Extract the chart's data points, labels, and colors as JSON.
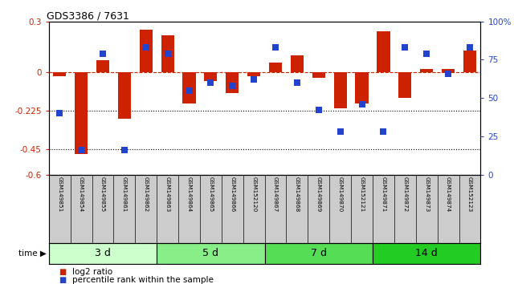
{
  "title": "GDS3386 / 7631",
  "samples": [
    "GSM149851",
    "GSM149854",
    "GSM149855",
    "GSM149861",
    "GSM149862",
    "GSM149863",
    "GSM149864",
    "GSM149865",
    "GSM149866",
    "GSM152120",
    "GSM149867",
    "GSM149868",
    "GSM149869",
    "GSM149870",
    "GSM152121",
    "GSM149871",
    "GSM149872",
    "GSM149873",
    "GSM149874",
    "GSM152123"
  ],
  "log2_ratio": [
    -0.02,
    -0.48,
    0.07,
    -0.27,
    0.25,
    0.22,
    -0.18,
    -0.05,
    -0.12,
    -0.02,
    0.06,
    0.1,
    -0.03,
    -0.21,
    -0.18,
    0.24,
    -0.15,
    0.02,
    0.02,
    0.13
  ],
  "percentile_rank": [
    40,
    16,
    79,
    16,
    83,
    79,
    55,
    60,
    58,
    62,
    83,
    60,
    42,
    28,
    46,
    28,
    83,
    79,
    66,
    83
  ],
  "groups": [
    {
      "label": "3 d",
      "start": 0,
      "end": 5,
      "color": "#ccffcc"
    },
    {
      "label": "5 d",
      "start": 5,
      "end": 10,
      "color": "#88ee88"
    },
    {
      "label": "7 d",
      "start": 10,
      "end": 15,
      "color": "#55dd55"
    },
    {
      "label": "14 d",
      "start": 15,
      "end": 20,
      "color": "#22cc22"
    }
  ],
  "ylim_left": [
    -0.6,
    0.3
  ],
  "ylim_right": [
    0,
    100
  ],
  "yticks_left": [
    0.3,
    0.0,
    -0.225,
    -0.45,
    -0.6
  ],
  "yticks_left_labels": [
    "0.3",
    "0",
    "-0.225",
    "-0.45",
    "-0.6"
  ],
  "yticks_right": [
    100,
    75,
    50,
    25,
    0
  ],
  "yticks_right_labels": [
    "100%",
    "75",
    "50",
    "25",
    "0"
  ],
  "hlines": [
    -0.225,
    -0.45
  ],
  "bar_color": "#cc2200",
  "dot_color": "#2244cc",
  "zero_line_color": "#cc2200",
  "background_color": "#ffffff",
  "bar_width": 0.6,
  "dot_size": 28,
  "label_bg": "#cccccc",
  "label_fontsize": 5.5,
  "group_fontsize": 9
}
